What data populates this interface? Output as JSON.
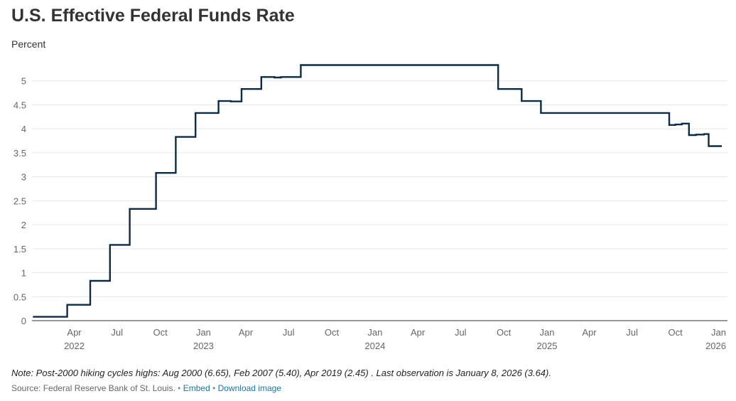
{
  "chart_data": {
    "type": "line",
    "title": "U.S. Effective Federal Funds Rate",
    "ylabel": "Percent",
    "ylim": [
      0,
      5.5
    ],
    "yticks": [
      "0",
      "0.5",
      "1",
      "1.5",
      "2",
      "2.5",
      "3",
      "3.5",
      "4",
      "4.5",
      "5"
    ],
    "xlim": [
      "2022-01-01",
      "2026-01-20"
    ],
    "xticks": [
      {
        "date": "2022-04-01",
        "label": "Apr",
        "year": "2022"
      },
      {
        "date": "2022-07-01",
        "label": "Jul",
        "year": ""
      },
      {
        "date": "2022-10-01",
        "label": "Oct",
        "year": ""
      },
      {
        "date": "2023-01-01",
        "label": "Jan",
        "year": "2023"
      },
      {
        "date": "2023-04-01",
        "label": "Apr",
        "year": ""
      },
      {
        "date": "2023-07-01",
        "label": "Jul",
        "year": ""
      },
      {
        "date": "2023-10-01",
        "label": "Oct",
        "year": ""
      },
      {
        "date": "2024-01-01",
        "label": "Jan",
        "year": "2024"
      },
      {
        "date": "2024-04-01",
        "label": "Apr",
        "year": ""
      },
      {
        "date": "2024-07-01",
        "label": "Jul",
        "year": ""
      },
      {
        "date": "2024-10-01",
        "label": "Oct",
        "year": ""
      },
      {
        "date": "2025-01-01",
        "label": "Jan",
        "year": "2025"
      },
      {
        "date": "2025-04-01",
        "label": "Apr",
        "year": ""
      },
      {
        "date": "2025-07-01",
        "label": "Jul",
        "year": ""
      },
      {
        "date": "2025-10-01",
        "label": "Oct",
        "year": ""
      },
      {
        "date": "2026-01-01",
        "label": "Jan",
        "year": "2026"
      }
    ],
    "grid": true,
    "color": "#0d2b45",
    "series": [
      {
        "step": true,
        "points": [
          {
            "x": "2022-01-03",
            "y": 0.08
          },
          {
            "x": "2022-03-17",
            "y": 0.33
          },
          {
            "x": "2022-05-05",
            "y": 0.83
          },
          {
            "x": "2022-06-16",
            "y": 1.58
          },
          {
            "x": "2022-07-28",
            "y": 2.33
          },
          {
            "x": "2022-09-22",
            "y": 3.08
          },
          {
            "x": "2022-11-03",
            "y": 3.83
          },
          {
            "x": "2022-12-15",
            "y": 4.33
          },
          {
            "x": "2023-02-02",
            "y": 4.58
          },
          {
            "x": "2023-02-28",
            "y": 4.57
          },
          {
            "x": "2023-03-23",
            "y": 4.83
          },
          {
            "x": "2023-05-04",
            "y": 5.08
          },
          {
            "x": "2023-06-01",
            "y": 5.07
          },
          {
            "x": "2023-06-15",
            "y": 5.08
          },
          {
            "x": "2023-07-27",
            "y": 5.33
          },
          {
            "x": "2024-09-19",
            "y": 4.83
          },
          {
            "x": "2024-11-08",
            "y": 4.58
          },
          {
            "x": "2024-12-19",
            "y": 4.33
          },
          {
            "x": "2025-09-18",
            "y": 4.08
          },
          {
            "x": "2025-10-01",
            "y": 4.09
          },
          {
            "x": "2025-10-15",
            "y": 4.11
          },
          {
            "x": "2025-10-30",
            "y": 3.87
          },
          {
            "x": "2025-11-14",
            "y": 3.88
          },
          {
            "x": "2025-12-01",
            "y": 3.89
          },
          {
            "x": "2025-12-11",
            "y": 3.64
          },
          {
            "x": "2026-01-08",
            "y": 3.64
          }
        ]
      }
    ]
  },
  "note": "Note: Post-2000 hiking cycles highs: Aug 2000 (6.65), Feb 2007 (5.40), Apr 2019 (2.45) . Last observation is January 8, 2026 (3.64).",
  "source": {
    "text": "Source: Federal Reserve Bank of St. Louis.",
    "sep": "•",
    "embed": "Embed",
    "download": "Download image",
    "link_color": "#1a73a8"
  }
}
